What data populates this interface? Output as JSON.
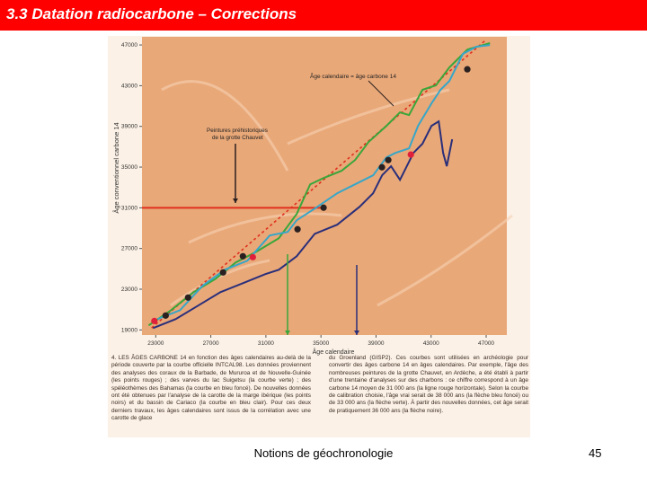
{
  "header": {
    "title": "3.3 Datation radiocarbone – Corrections"
  },
  "chart_data": {
    "type": "line",
    "xlabel": "Âge calendaire",
    "ylabel": "Âge conventionnel carbone 14",
    "annotations": [
      "Âge calendaire = âge carbone 14",
      "Peintures préhistoriques de la grotte Chauvet"
    ],
    "xlim": [
      22000,
      48500
    ],
    "ylim": [
      18500,
      47800
    ],
    "xticks": [
      23000,
      27000,
      31000,
      35000,
      39000,
      43000,
      47000
    ],
    "yticks": [
      19000,
      23000,
      27000,
      31000,
      35000,
      39000,
      43000,
      47000
    ],
    "grid": false,
    "background": "#e9a878",
    "series": [
      {
        "style": "dashed",
        "color": "#e0301e",
        "x": [
          22700,
          46900
        ],
        "values": [
          19200,
          47400
        ]
      },
      {
        "style": "line",
        "color": "#e0301e",
        "x": [
          22000,
          35200
        ],
        "values": [
          31000,
          31000
        ]
      },
      {
        "style": "line",
        "color": "#3aa63a",
        "x": [
          22480,
          24110,
          25740,
          27370,
          28810,
          30310,
          31940,
          33240,
          34220,
          35200,
          36500,
          37480,
          38460,
          39760,
          40740,
          41400,
          42370,
          43350,
          44330,
          45640,
          47270
        ],
        "values": [
          19440,
          20940,
          22710,
          24040,
          25630,
          26690,
          28010,
          30400,
          33310,
          33930,
          34640,
          35700,
          37470,
          39050,
          40380,
          40110,
          42590,
          43030,
          44800,
          46560,
          47180
        ]
      },
      {
        "style": "line",
        "color": "#37a6c8",
        "x": [
          23130,
          24760,
          26390,
          28020,
          29650,
          31280,
          32590,
          33240,
          34550,
          36180,
          37480,
          38790,
          39760,
          40420,
          41400,
          42050,
          43030,
          43680,
          44330,
          45310,
          46290,
          47270
        ],
        "values": [
          20060,
          20940,
          23330,
          24920,
          25800,
          28280,
          28630,
          29780,
          30930,
          32430,
          33310,
          34190,
          35960,
          36400,
          36840,
          39050,
          41260,
          42590,
          43470,
          46120,
          46830,
          47000
        ]
      },
      {
        "style": "line",
        "color": "#2a2f7a",
        "x": [
          22800,
          24440,
          26070,
          27700,
          29330,
          30960,
          31940,
          33240,
          34550,
          36180,
          37810,
          38790,
          39440,
          40090,
          40740,
          41070,
          41720,
          42370,
          43030,
          43550,
          43870,
          44140,
          44530
        ],
        "values": [
          19180,
          20060,
          21390,
          22710,
          23590,
          24480,
          24920,
          26240,
          28450,
          29340,
          31100,
          32430,
          34190,
          35080,
          33750,
          34640,
          36400,
          37290,
          39050,
          39490,
          36400,
          35080,
          37730
        ]
      },
      {
        "style": "points",
        "color": "#e0203a",
        "x": [
          22900,
          30050,
          41530
        ],
        "values": [
          19880,
          26150,
          36230
        ]
      },
      {
        "style": "points",
        "color": "#2a2020",
        "x": [
          23720,
          25350,
          27890,
          29330,
          33300,
          35190,
          39430,
          39890,
          45630
        ],
        "values": [
          20410,
          22180,
          24650,
          26240,
          28890,
          31010,
          34980,
          35690,
          44610
        ]
      }
    ]
  },
  "figure": {
    "caption_left": "4. LES ÂGES CARBONE 14 en fonction des âges calendaires au-delà de la période couverte par la courbe officielle INTCAL98. Les données proviennent des analyses des coraux de la Barbade, de Mururoa et de Nouvelle-Guinée (les points rouges) ; des varves du lac Suigetsu (la courbe verte) ; des spéléothèmes des Bahamas (la courbe en bleu foncé). De nouvelles données ont été obtenues par l'analyse de la carotte de la marge ibérique (les points noirs) et du bassin de Cariaco (la courbe en bleu clair). Pour ces deux derniers travaux, les âges calendaires sont issus de la corrélation avec une carotte de glace",
    "caption_right": "du Groenland (GISP2). Ces courbes sont utilisées en archéologie pour convertir des âges carbone 14 en âges calendaires. Par exemple, l'âge des nombreuses peintures de la grotte Chauvet, en Ardèche, a été établi à partir d'une trentaine d'analyses sur des charbons : ce chiffre correspond à un âge carbone 14 moyen de 31 000 ans (la ligne rouge horizontale). Selon la courbe de calibration choisie, l'âge vrai serait de 38 000 ans (la flèche bleu foncé) ou de 33 000 ans (la flèche verte). À partir des nouvelles données, cet âge serait de pratiquement 36 000 ans (la flèche noire)."
  },
  "footer": {
    "title": "Notions de géochronologie",
    "page": "45"
  }
}
